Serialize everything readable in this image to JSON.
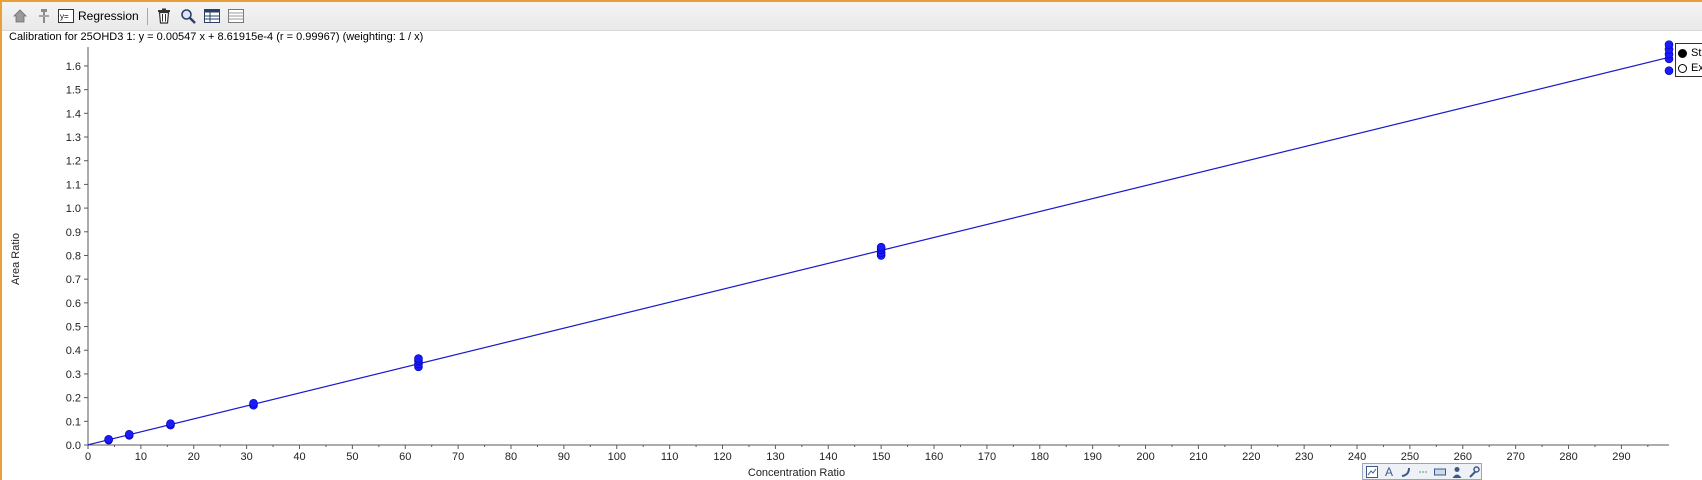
{
  "toolbar": {
    "regression_label": "Regression",
    "icons": [
      "home-icon",
      "pin-icon",
      "regression-icon",
      "trash-icon",
      "zoom-icon",
      "table-icon",
      "list-icon"
    ]
  },
  "caption": "Calibration for 25OHD3 1: y = 0.00547 x + 8.61915e-4 (r = 0.99967)  (weighting: 1 / x)",
  "legend": {
    "items": [
      {
        "label": "St",
        "symbol": "filled-circle"
      },
      {
        "label": "Ex",
        "symbol": "open-circle"
      }
    ]
  },
  "colors": {
    "series": "#1a1aff",
    "line": "#1a1acc",
    "toolbar_border": "#e8a03a"
  },
  "chart_data": {
    "type": "scatter",
    "title": "Calibration for 25OHD3 1: y = 0.00547 x + 8.61915e-4 (r = 0.99967)  (weighting: 1 / x)",
    "xlabel": "Concentration Ratio",
    "ylabel": "Area Ratio",
    "xlim": [
      0,
      299
    ],
    "ylim": [
      0,
      1.68
    ],
    "xticks": [
      0,
      10,
      20,
      30,
      40,
      50,
      60,
      70,
      80,
      90,
      100,
      110,
      120,
      130,
      140,
      150,
      160,
      170,
      180,
      190,
      200,
      210,
      220,
      230,
      240,
      250,
      260,
      270,
      280,
      290
    ],
    "yticks": [
      0.0,
      0.1,
      0.2,
      0.3,
      0.4,
      0.5,
      0.6,
      0.7,
      0.8,
      0.9,
      1.0,
      1.1,
      1.2,
      1.3,
      1.4,
      1.5,
      1.6
    ],
    "grid": false,
    "legend_position": "top-right",
    "regression": {
      "slope": 0.00547,
      "intercept": 0.000861915,
      "r": 0.99967,
      "weighting": "1 / x"
    },
    "series": [
      {
        "name": "St",
        "points": [
          {
            "x": 3.9,
            "y": 0.021
          },
          {
            "x": 3.9,
            "y": 0.024
          },
          {
            "x": 7.8,
            "y": 0.041
          },
          {
            "x": 7.8,
            "y": 0.045
          },
          {
            "x": 15.6,
            "y": 0.084
          },
          {
            "x": 15.6,
            "y": 0.09
          },
          {
            "x": 31.3,
            "y": 0.168
          },
          {
            "x": 31.3,
            "y": 0.176
          },
          {
            "x": 62.5,
            "y": 0.33
          },
          {
            "x": 62.5,
            "y": 0.342
          },
          {
            "x": 62.5,
            "y": 0.355
          },
          {
            "x": 62.5,
            "y": 0.365
          },
          {
            "x": 150,
            "y": 0.8
          },
          {
            "x": 150,
            "y": 0.812
          },
          {
            "x": 150,
            "y": 0.825
          },
          {
            "x": 150,
            "y": 0.835
          },
          {
            "x": 299,
            "y": 1.58
          },
          {
            "x": 299,
            "y": 1.63
          },
          {
            "x": 299,
            "y": 1.65
          },
          {
            "x": 299,
            "y": 1.67
          },
          {
            "x": 299,
            "y": 1.69
          }
        ]
      }
    ]
  },
  "mini_toolbar": {
    "icons": [
      "chart-icon",
      "text-icon",
      "curve-icon",
      "dots-icon",
      "keyboard-icon",
      "person-icon",
      "wrench-icon"
    ],
    "text_glyph": "A"
  }
}
